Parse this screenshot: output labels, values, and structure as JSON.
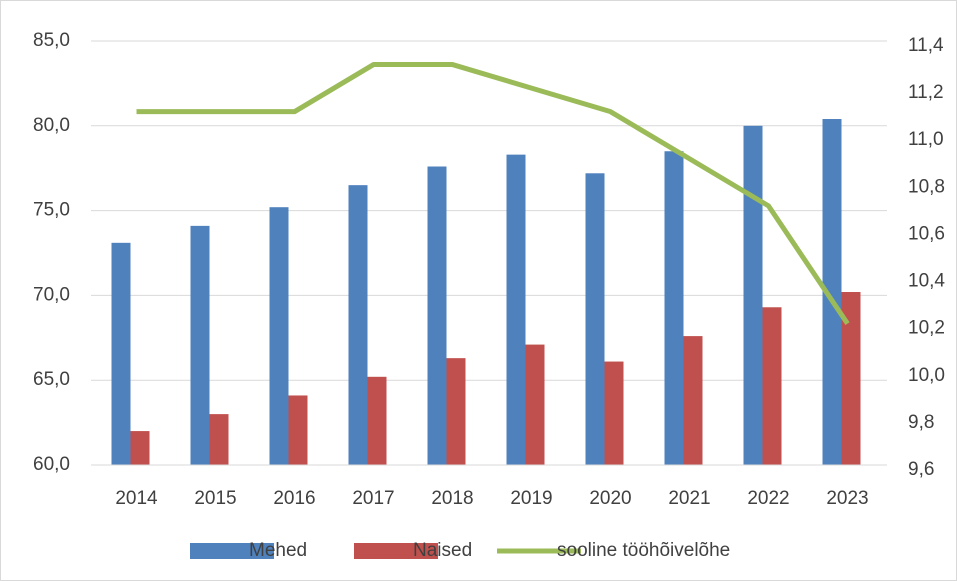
{
  "chart_data": {
    "type": "bar_line",
    "categories": [
      "2014",
      "2015",
      "2016",
      "2017",
      "2018",
      "2019",
      "2020",
      "2021",
      "2022",
      "2023"
    ],
    "series": [
      {
        "name": "Mehed",
        "color": "#4f81bd",
        "type": "bar",
        "values": [
          73.1,
          74.1,
          75.2,
          76.5,
          77.6,
          78.3,
          77.2,
          78.5,
          80.0,
          80.4
        ]
      },
      {
        "name": "Naised",
        "color": "#c0504d",
        "type": "bar",
        "values": [
          62.0,
          63.0,
          64.1,
          65.2,
          66.3,
          67.1,
          66.1,
          67.6,
          69.3,
          70.2
        ]
      },
      {
        "name": "sooline tööhõivelõhe",
        "color": "#9bbb59",
        "type": "line",
        "axis": "y2",
        "values": [
          11.1,
          11.1,
          11.1,
          11.3,
          11.3,
          11.2,
          11.1,
          10.9,
          10.7,
          10.2
        ]
      }
    ],
    "ylim": [
      60,
      85
    ],
    "yticks": [
      {
        "value": 60,
        "label": "60,0"
      },
      {
        "value": 65,
        "label": "65,0"
      },
      {
        "value": 70,
        "label": "70,0"
      },
      {
        "value": 75,
        "label": "75,0"
      },
      {
        "value": 80,
        "label": "80,0"
      },
      {
        "value": 85,
        "label": "85,0"
      }
    ],
    "y2lim": [
      9.6,
      11.4
    ],
    "y2ticks": [
      {
        "value": 9.6,
        "label": "9,6"
      },
      {
        "value": 9.8,
        "label": "9,8"
      },
      {
        "value": 10.0,
        "label": "10,0"
      },
      {
        "value": 10.2,
        "label": "10,2"
      },
      {
        "value": 10.4,
        "label": "10,4"
      },
      {
        "value": 10.6,
        "label": "10,6"
      },
      {
        "value": 10.8,
        "label": "10,8"
      },
      {
        "value": 11.0,
        "label": "11,0"
      },
      {
        "value": 11.2,
        "label": "11,2"
      },
      {
        "value": 11.4,
        "label": "11,4"
      }
    ],
    "grid": true,
    "legend": "bottom"
  }
}
